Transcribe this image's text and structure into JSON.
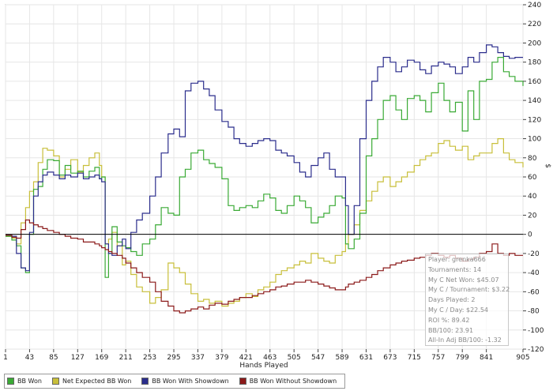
{
  "chart_data": {
    "type": "line",
    "title": "",
    "xlabel": "Hands Played",
    "ylabel": "$",
    "xlim": [
      1,
      905
    ],
    "ylim": [
      -120,
      240
    ],
    "x_ticks": [
      1,
      43,
      85,
      127,
      169,
      211,
      253,
      295,
      337,
      379,
      421,
      463,
      505,
      547,
      589,
      631,
      673,
      715,
      757,
      799,
      841,
      905
    ],
    "y_ticks": [
      240,
      220,
      200,
      180,
      160,
      140,
      120,
      100,
      80,
      60,
      40,
      20,
      0,
      -20,
      -40,
      -60,
      -80,
      -100,
      -120
    ],
    "grid": true,
    "zero_line": true,
    "series": [
      {
        "name": "BB Won",
        "color": "#3aaa35",
        "x": [
          1,
          12,
          20,
          28,
          36,
          43,
          50,
          58,
          66,
          74,
          85,
          95,
          105,
          115,
          127,
          137,
          147,
          157,
          165,
          169,
          175,
          181,
          187,
          196,
          205,
          211,
          220,
          230,
          240,
          253,
          263,
          273,
          285,
          295,
          305,
          315,
          325,
          337,
          347,
          357,
          367,
          379,
          390,
          400,
          410,
          421,
          432,
          442,
          452,
          463,
          473,
          483,
          493,
          505,
          515,
          525,
          535,
          547,
          557,
          567,
          577,
          589,
          595,
          600,
          610,
          620,
          631,
          641,
          651,
          661,
          673,
          683,
          693,
          703,
          715,
          725,
          735,
          745,
          757,
          767,
          777,
          787,
          799,
          809,
          819,
          829,
          841,
          851,
          861,
          871,
          881,
          891,
          905
        ],
        "y": [
          -2,
          -6,
          -12,
          -35,
          -40,
          0,
          47,
          50,
          68,
          78,
          77,
          62,
          72,
          64,
          66,
          60,
          66,
          70,
          58,
          60,
          -45,
          -20,
          8,
          -8,
          -12,
          -14,
          -18,
          -22,
          -10,
          -5,
          10,
          28,
          22,
          20,
          60,
          68,
          85,
          88,
          78,
          74,
          70,
          58,
          30,
          25,
          28,
          30,
          28,
          35,
          42,
          38,
          25,
          22,
          30,
          40,
          35,
          28,
          12,
          18,
          22,
          30,
          40,
          38,
          -10,
          -15,
          -5,
          22,
          82,
          100,
          120,
          140,
          145,
          130,
          120,
          142,
          145,
          140,
          128,
          148,
          158,
          140,
          128,
          138,
          108,
          150,
          120,
          160,
          162,
          180,
          185,
          170,
          165,
          160,
          155
        ]
      },
      {
        "name": "Net Expected BB Won",
        "color": "#c8bf3a",
        "x": [
          1,
          12,
          20,
          28,
          36,
          43,
          50,
          58,
          66,
          74,
          85,
          95,
          105,
          115,
          127,
          137,
          147,
          157,
          165,
          169,
          175,
          181,
          187,
          196,
          205,
          211,
          220,
          230,
          240,
          253,
          263,
          273,
          285,
          295,
          305,
          315,
          325,
          337,
          347,
          357,
          367,
          379,
          390,
          400,
          410,
          421,
          432,
          442,
          452,
          463,
          473,
          483,
          493,
          505,
          515,
          525,
          535,
          547,
          557,
          567,
          577,
          589,
          595,
          600,
          610,
          620,
          631,
          641,
          651,
          661,
          673,
          683,
          693,
          703,
          715,
          725,
          735,
          745,
          757,
          767,
          777,
          787,
          799,
          809,
          819,
          829,
          841,
          851,
          861,
          871,
          881,
          891,
          905
        ],
        "y": [
          -2,
          -4,
          -10,
          12,
          28,
          45,
          55,
          75,
          90,
          88,
          82,
          60,
          68,
          78,
          65,
          72,
          80,
          85,
          72,
          60,
          -10,
          -5,
          2,
          -12,
          -32,
          -28,
          -42,
          -55,
          -60,
          -72,
          -66,
          -58,
          -30,
          -35,
          -40,
          -52,
          -62,
          -70,
          -68,
          -72,
          -70,
          -75,
          -72,
          -70,
          -66,
          -62,
          -65,
          -58,
          -55,
          -50,
          -42,
          -38,
          -35,
          -32,
          -28,
          -30,
          -20,
          -25,
          -28,
          -30,
          -22,
          -18,
          -10,
          0,
          10,
          25,
          35,
          45,
          55,
          60,
          50,
          55,
          60,
          65,
          72,
          78,
          82,
          85,
          95,
          98,
          92,
          88,
          92,
          78,
          82,
          85,
          85,
          95,
          100,
          85,
          78,
          75,
          70
        ]
      },
      {
        "name": "BB Won With Showdown",
        "color": "#2b2d8c",
        "x": [
          1,
          12,
          20,
          28,
          36,
          43,
          50,
          58,
          66,
          74,
          85,
          95,
          105,
          115,
          127,
          137,
          147,
          157,
          165,
          169,
          175,
          181,
          187,
          196,
          205,
          211,
          220,
          230,
          240,
          253,
          263,
          273,
          285,
          295,
          305,
          315,
          325,
          337,
          347,
          357,
          367,
          379,
          390,
          400,
          410,
          421,
          432,
          442,
          452,
          463,
          473,
          483,
          493,
          505,
          515,
          525,
          535,
          547,
          557,
          567,
          577,
          589,
          595,
          600,
          610,
          620,
          631,
          641,
          651,
          661,
          673,
          683,
          693,
          703,
          715,
          725,
          735,
          745,
          757,
          767,
          777,
          787,
          799,
          809,
          819,
          829,
          841,
          851,
          861,
          871,
          881,
          891,
          905
        ],
        "y": [
          -1,
          -2,
          -20,
          -35,
          -38,
          2,
          40,
          55,
          62,
          65,
          62,
          58,
          62,
          60,
          64,
          58,
          60,
          62,
          58,
          55,
          -10,
          -20,
          -22,
          -12,
          -5,
          -15,
          2,
          15,
          22,
          40,
          60,
          85,
          105,
          110,
          102,
          150,
          158,
          160,
          152,
          145,
          130,
          118,
          112,
          100,
          95,
          92,
          95,
          98,
          100,
          98,
          88,
          85,
          82,
          75,
          65,
          60,
          72,
          80,
          85,
          68,
          60,
          60,
          30,
          0,
          30,
          100,
          140,
          160,
          175,
          185,
          180,
          170,
          175,
          182,
          180,
          172,
          168,
          176,
          180,
          178,
          175,
          168,
          175,
          185,
          180,
          190,
          198,
          196,
          190,
          186,
          184,
          185,
          185
        ]
      },
      {
        "name": "BB Won Without Showdown",
        "color": "#8b1a1a",
        "x": [
          1,
          12,
          20,
          28,
          36,
          43,
          50,
          58,
          66,
          74,
          85,
          95,
          105,
          115,
          127,
          137,
          147,
          157,
          165,
          169,
          175,
          181,
          187,
          196,
          205,
          211,
          220,
          230,
          240,
          253,
          263,
          273,
          285,
          295,
          305,
          315,
          325,
          337,
          347,
          357,
          367,
          379,
          390,
          400,
          410,
          421,
          432,
          442,
          452,
          463,
          473,
          483,
          493,
          505,
          515,
          525,
          535,
          547,
          557,
          567,
          577,
          589,
          595,
          600,
          610,
          620,
          631,
          641,
          651,
          661,
          673,
          683,
          693,
          703,
          715,
          725,
          735,
          745,
          757,
          767,
          777,
          787,
          799,
          809,
          819,
          829,
          841,
          851,
          861,
          871,
          881,
          891,
          905
        ],
        "y": [
          -1,
          -3,
          -4,
          5,
          15,
          12,
          10,
          8,
          6,
          4,
          2,
          0,
          -2,
          -4,
          -5,
          -8,
          -8,
          -10,
          -12,
          -14,
          -16,
          -18,
          -20,
          -22,
          -25,
          -30,
          -35,
          -40,
          -45,
          -50,
          -60,
          -70,
          -75,
          -80,
          -82,
          -80,
          -78,
          -76,
          -78,
          -74,
          -72,
          -73,
          -70,
          -68,
          -66,
          -66,
          -64,
          -62,
          -60,
          -58,
          -55,
          -54,
          -52,
          -50,
          -50,
          -48,
          -50,
          -52,
          -54,
          -56,
          -58,
          -58,
          -55,
          -52,
          -50,
          -48,
          -45,
          -42,
          -38,
          -35,
          -32,
          -30,
          -28,
          -27,
          -25,
          -24,
          -22,
          -20,
          -22,
          -24,
          -22,
          -25,
          -28,
          -26,
          -24,
          -20,
          -18,
          -10,
          -20,
          -22,
          -20,
          -22,
          -22
        ]
      }
    ]
  },
  "legend": {
    "items": [
      {
        "label": "BB Won",
        "color": "#3aaa35"
      },
      {
        "label": "Net Expected BB Won",
        "color": "#c8bf3a"
      },
      {
        "label": "BB Won With Showdown",
        "color": "#2b2d8c"
      },
      {
        "label": "BB Won Without Showdown",
        "color": "#8b1a1a"
      }
    ]
  },
  "stats": {
    "player": "Player: grenka666",
    "tournaments": "Tournaments: 14",
    "net_won": "My C Net Won: $45.07",
    "per_tournament": "My C / Tournament: $3.22",
    "days_played": "Days Played: 2",
    "per_day": "My C / Day: $22.54",
    "roi": "ROI %: 89.42",
    "bb100": "BB/100: 23.91",
    "allin_bb100": "All-In Adj BB/100: -1.32"
  }
}
